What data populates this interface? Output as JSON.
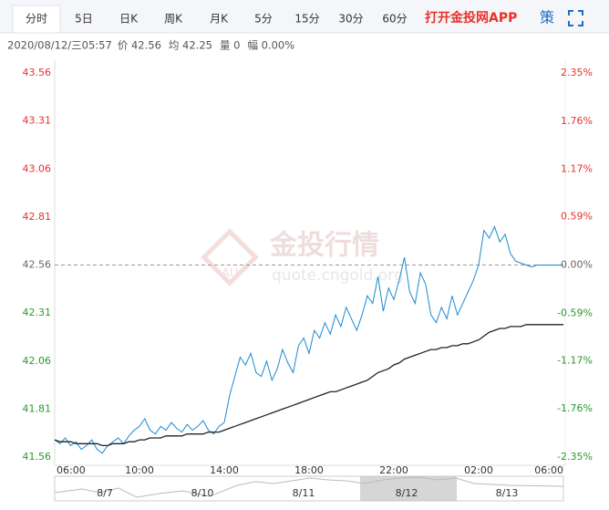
{
  "tabs": [
    "分时",
    "5日",
    "日K",
    "周K",
    "月K",
    "5分",
    "15分",
    "30分",
    "60分"
  ],
  "app_link": "打开金投网APP",
  "strategy": "策",
  "info": {
    "datetime": "2020/08/12/三05:57",
    "items": [
      "价 42.56",
      "均 42.25",
      "量 0",
      "幅 0.00%"
    ]
  },
  "watermark": {
    "brand": "金投行情",
    "site": "quote.cngold.org",
    "logo": "AU"
  },
  "navigator": {
    "dates": [
      "8/7",
      "8/10",
      "8/11",
      "8/12",
      "8/13"
    ]
  },
  "chart_data": {
    "type": "line",
    "categories": [
      "06:00",
      null,
      null,
      null,
      null,
      null,
      null,
      null,
      null,
      null,
      null,
      null,
      null,
      null,
      null,
      null,
      "10:00",
      null,
      null,
      null,
      null,
      null,
      null,
      null,
      null,
      null,
      null,
      null,
      null,
      null,
      null,
      null,
      "14:00",
      null,
      null,
      null,
      null,
      null,
      null,
      null,
      null,
      null,
      null,
      null,
      null,
      null,
      null,
      null,
      "18:00",
      null,
      null,
      null,
      null,
      null,
      null,
      null,
      null,
      null,
      null,
      null,
      null,
      null,
      null,
      null,
      "22:00",
      null,
      null,
      null,
      null,
      null,
      null,
      null,
      null,
      null,
      null,
      null,
      null,
      null,
      null,
      null,
      "02:00",
      null,
      null,
      null,
      null,
      null,
      null,
      null,
      null,
      null,
      null,
      null,
      null,
      null,
      null,
      null,
      "06:00"
    ],
    "series": [
      {
        "name": "价",
        "color": "#1a8ad0",
        "values": [
          41.65,
          41.63,
          41.66,
          41.62,
          41.64,
          41.6,
          41.62,
          41.65,
          41.6,
          41.58,
          41.62,
          41.64,
          41.66,
          41.63,
          41.67,
          41.7,
          41.72,
          41.76,
          41.7,
          41.68,
          41.72,
          41.7,
          41.74,
          41.71,
          41.69,
          41.73,
          41.7,
          41.72,
          41.75,
          41.7,
          41.68,
          41.72,
          41.74,
          41.88,
          41.98,
          42.08,
          42.04,
          42.1,
          42.0,
          41.98,
          42.06,
          41.96,
          42.02,
          42.12,
          42.05,
          42.0,
          42.14,
          42.18,
          42.1,
          42.22,
          42.18,
          42.26,
          42.2,
          42.3,
          42.24,
          42.34,
          42.28,
          42.22,
          42.3,
          42.4,
          42.36,
          42.5,
          42.32,
          42.44,
          42.38,
          42.48,
          42.6,
          42.42,
          42.36,
          42.52,
          42.46,
          42.3,
          42.26,
          42.34,
          42.28,
          42.4,
          42.3,
          42.36,
          42.42,
          42.48,
          42.56,
          42.74,
          42.7,
          42.76,
          42.68,
          42.72,
          42.62,
          42.58,
          42.57,
          42.56,
          42.55,
          42.56,
          42.56,
          42.56,
          42.56,
          42.56,
          42.56
        ]
      },
      {
        "name": "均",
        "color": "#222222",
        "values": [
          41.65,
          41.64,
          41.64,
          41.64,
          41.63,
          41.63,
          41.63,
          41.63,
          41.63,
          41.62,
          41.62,
          41.63,
          41.63,
          41.63,
          41.64,
          41.64,
          41.65,
          41.65,
          41.66,
          41.66,
          41.66,
          41.67,
          41.67,
          41.67,
          41.67,
          41.68,
          41.68,
          41.68,
          41.68,
          41.69,
          41.69,
          41.69,
          41.7,
          41.71,
          41.72,
          41.73,
          41.74,
          41.75,
          41.76,
          41.77,
          41.78,
          41.79,
          41.8,
          41.81,
          41.82,
          41.83,
          41.84,
          41.85,
          41.86,
          41.87,
          41.88,
          41.89,
          41.9,
          41.9,
          41.91,
          41.92,
          41.93,
          41.94,
          41.95,
          41.96,
          41.98,
          42.0,
          42.01,
          42.02,
          42.04,
          42.05,
          42.07,
          42.08,
          42.09,
          42.1,
          42.11,
          42.12,
          42.12,
          42.13,
          42.13,
          42.14,
          42.14,
          42.15,
          42.15,
          42.16,
          42.17,
          42.19,
          42.21,
          42.22,
          42.23,
          42.23,
          42.24,
          42.24,
          42.24,
          42.25,
          42.25,
          42.25,
          42.25,
          42.25,
          42.25,
          42.25,
          42.25
        ]
      }
    ],
    "reference": 42.56,
    "ylim": [
      41.56,
      43.56
    ],
    "yticks": [
      43.56,
      43.31,
      43.06,
      42.81,
      42.56,
      42.31,
      42.06,
      41.81,
      41.56
    ],
    "y2lim": [
      -2.35,
      2.35
    ],
    "y2ticks": [
      {
        "value": 2.35,
        "label": "2.35%"
      },
      {
        "value": 1.76,
        "label": "1.76%"
      },
      {
        "value": 1.17,
        "label": "1.17%"
      },
      {
        "value": 0.59,
        "label": "0.59%"
      },
      {
        "value": 0,
        "label": "0.00%"
      },
      {
        "value": -0.59,
        "label": "-0.59%"
      },
      {
        "value": -1.17,
        "label": "-1.17%"
      },
      {
        "value": -1.76,
        "label": "-1.76%"
      },
      {
        "value": -2.35,
        "label": "-2.35%"
      }
    ],
    "up_color": "#e8312b",
    "down_color": "#2a9a2a",
    "flat_color": "#666666"
  }
}
